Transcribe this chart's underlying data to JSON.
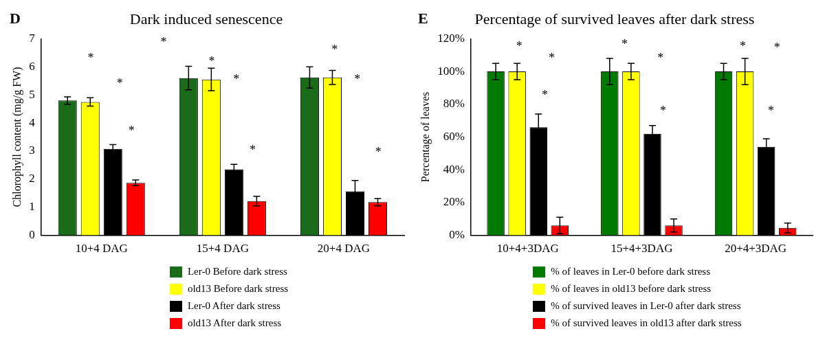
{
  "chart_data": [
    {
      "type": "bar",
      "title": "Dark induced senescence",
      "ylabel": "Chlorophyll content (mg/g FW)",
      "categories": [
        "10+4 DAG",
        "15+4 DAG",
        "20+4 DAG"
      ],
      "series": [
        {
          "name": "Ler-0 Before dark stress",
          "color": "#1a6b1a",
          "values": [
            4.8,
            5.6,
            5.62
          ],
          "errors": [
            0.13,
            0.42,
            0.38
          ]
        },
        {
          "name": "old13 Before dark stress",
          "color": "#ffff00",
          "values": [
            4.75,
            5.55,
            5.62
          ],
          "errors": [
            0.15,
            0.4,
            0.25
          ]
        },
        {
          "name": "Ler-0 After dark stress",
          "color": "#000000",
          "values": [
            3.08,
            2.35,
            1.57
          ],
          "errors": [
            0.15,
            0.18,
            0.38
          ]
        },
        {
          "name": "old13 After dark stress",
          "color": "#ff0000",
          "values": [
            1.87,
            1.22,
            1.18
          ],
          "errors": [
            0.1,
            0.17,
            0.13
          ]
        }
      ],
      "ylim": [
        0,
        7
      ],
      "yticks": [
        0,
        1,
        2,
        3,
        4,
        5,
        6,
        7
      ],
      "grid": false,
      "legend": "bottom",
      "annotations": [
        "D",
        "*",
        "*",
        "*",
        "*",
        "*",
        "*",
        "*",
        "*",
        "*",
        "*"
      ]
    },
    {
      "type": "bar",
      "title": "Percentage of survived leaves after dark stress",
      "ylabel": "Percentage of leaves",
      "categories": [
        "10+4+3DAG",
        "15+4+3DAG",
        "20+4+3DAG"
      ],
      "series": [
        {
          "name": "% of leaves in Ler-0 before dark stress",
          "color": "#007a00",
          "values": [
            100,
            100,
            100
          ],
          "errors": [
            5,
            8,
            5
          ]
        },
        {
          "name": "% of leaves in old13 before dark stress",
          "color": "#ffff00",
          "values": [
            100,
            100,
            100
          ],
          "errors": [
            5,
            5,
            8
          ]
        },
        {
          "name": "% of survived leaves in Ler-0 after dark stress",
          "color": "#000000",
          "values": [
            66,
            62,
            54
          ],
          "errors": [
            8,
            5,
            5
          ]
        },
        {
          "name": "% of survived leaves in old13 after dark stress",
          "color": "#ff0000",
          "values": [
            6,
            6,
            4.5
          ],
          "errors": [
            5,
            4,
            3
          ]
        }
      ],
      "ylim": [
        0,
        120
      ],
      "yticks": [
        {
          "value": 0,
          "label": "0%"
        },
        {
          "value": 20,
          "label": "20%"
        },
        {
          "value": 40,
          "label": "40%"
        },
        {
          "value": 60,
          "label": "60%"
        },
        {
          "value": 80,
          "label": "80%"
        },
        {
          "value": 100,
          "label": "100%"
        },
        {
          "value": 120,
          "label": "120%"
        }
      ],
      "grid": false,
      "legend": "bottom",
      "annotations": [
        "E",
        "*",
        "*",
        "*",
        "*",
        "*",
        "*",
        "*",
        "*",
        "*"
      ]
    }
  ]
}
